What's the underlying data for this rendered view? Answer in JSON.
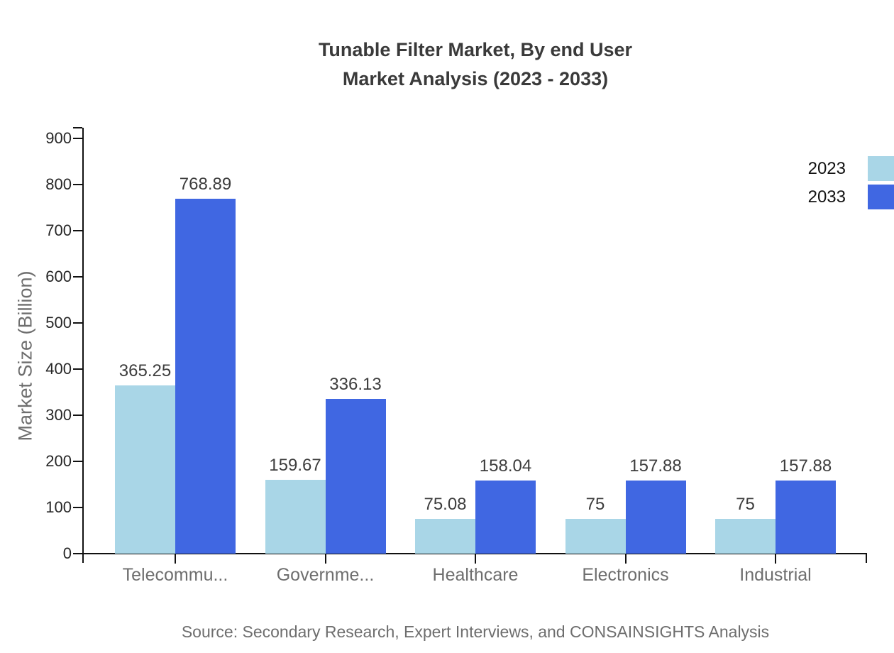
{
  "title": {
    "line1": "Tunable Filter Market, By end User",
    "line2": "Market Analysis (2023 - 2033)"
  },
  "y_axis": {
    "label": "Market Size (Billion)",
    "ticks": [
      "0",
      "100",
      "200",
      "300",
      "400",
      "500",
      "600",
      "700",
      "800",
      "900"
    ]
  },
  "legend": {
    "items": [
      {
        "label": "2023",
        "color": "#A9D6E7"
      },
      {
        "label": "2033",
        "color": "#4067E2"
      }
    ]
  },
  "source_note": "Source: Secondary Research, Expert Interviews, and CONSAINSIGHTS Analysis",
  "chart_data": {
    "type": "bar",
    "title": "Tunable Filter Market, By end User Market Analysis (2023 - 2033)",
    "categories": [
      "Telecommu...",
      "Governme...",
      "Healthcare",
      "Electronics",
      "Industrial"
    ],
    "series": [
      {
        "name": "2023",
        "color": "#A9D6E7",
        "values": [
          365.25,
          159.67,
          75.08,
          75,
          75
        ],
        "value_labels": [
          "365.25",
          "159.67",
          "75.08",
          "75",
          "75"
        ]
      },
      {
        "name": "2033",
        "color": "#4067E2",
        "values": [
          768.89,
          336.13,
          158.04,
          157.88,
          157.88
        ],
        "value_labels": [
          "768.89",
          "336.13",
          "158.04",
          "157.88",
          "157.88"
        ]
      }
    ],
    "xlabel": "",
    "ylabel": "Market Size (Billion)",
    "ylim": [
      0,
      900
    ],
    "ytick_step": 100,
    "grid": false,
    "legend_position": "upper-right",
    "bar_value_labels": true
  }
}
